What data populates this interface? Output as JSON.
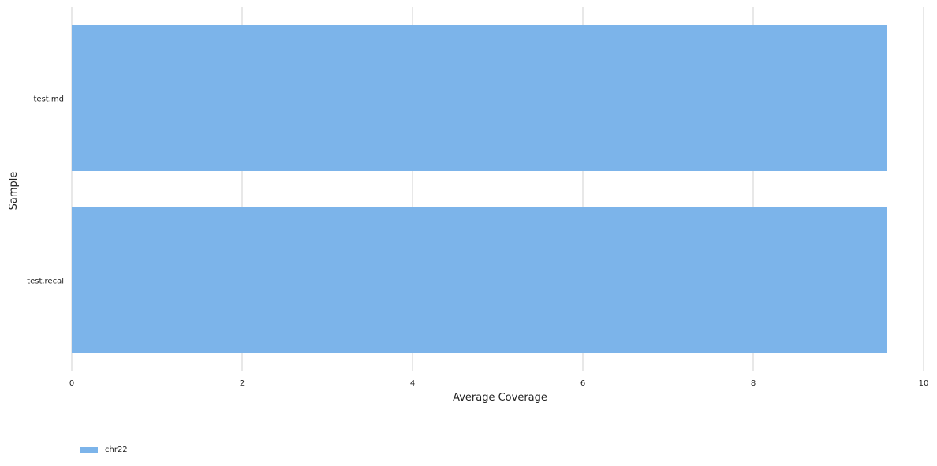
{
  "chart_data": {
    "type": "bar",
    "orientation": "horizontal",
    "categories": [
      "test.md",
      "test.recal"
    ],
    "series": [
      {
        "name": "chr22",
        "values": [
          9.57,
          9.57
        ],
        "color": "#7cb4ea"
      }
    ],
    "xlabel": "Average Coverage",
    "ylabel": "Sample",
    "xlim": [
      0,
      10
    ],
    "xticks": [
      "0",
      "2",
      "4",
      "6",
      "8",
      "10"
    ],
    "grid": "vertical",
    "grid_color": "#e0e0e0",
    "legend_position": "bottom-left"
  }
}
